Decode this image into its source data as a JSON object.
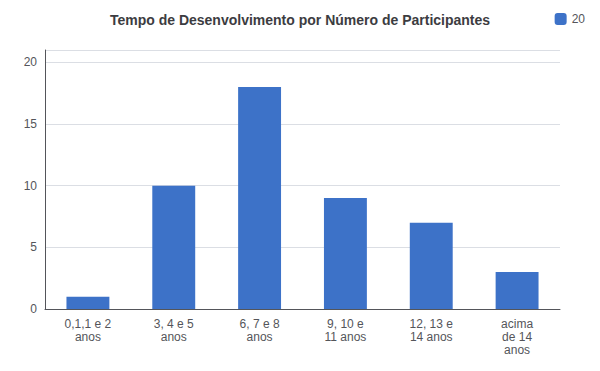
{
  "chart_data": {
    "type": "bar",
    "title": "Tempo de Desenvolvimento por Número de Participantes",
    "categories": [
      "0,1,1 e 2\nanos",
      "3, 4 e 5\nanos",
      "6, 7 e 8\nanos",
      "9, 10 e\n11 anos",
      "12, 13 e\n14 anos",
      "acima\nde 14\nanos"
    ],
    "series": [
      {
        "name": "20",
        "color": "#3d72c8",
        "values": [
          1,
          10,
          18,
          9,
          7,
          3
        ]
      }
    ],
    "ylim": [
      0,
      21
    ],
    "yticks": [
      0,
      5,
      10,
      15,
      20
    ],
    "grid": true,
    "legend": "upper right"
  }
}
